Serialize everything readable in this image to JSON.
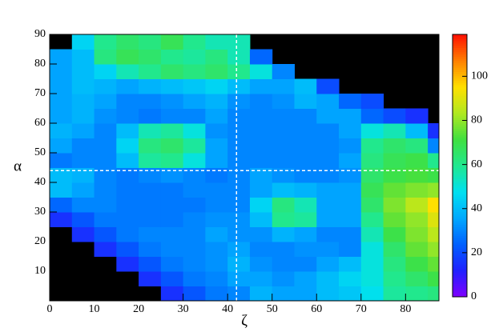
{
  "chart_data": {
    "type": "heatmap",
    "x_label": "ζ",
    "y_label": "α",
    "xlim": [
      0,
      87.5
    ],
    "ylim": [
      0,
      90
    ],
    "zlim": [
      0,
      119
    ],
    "xticks": [
      0,
      10,
      20,
      30,
      40,
      50,
      60,
      70,
      80
    ],
    "yticks": [
      10,
      20,
      30,
      40,
      50,
      60,
      70,
      80,
      90
    ],
    "zticks": [
      0,
      20,
      40,
      60,
      80,
      100
    ],
    "xbins": [
      0,
      5,
      10,
      15,
      20,
      25,
      30,
      35,
      40,
      45,
      50,
      55,
      60,
      65,
      70,
      75,
      80,
      85,
      90
    ],
    "ybins": [
      0,
      5,
      10,
      15,
      20,
      25,
      30,
      35,
      40,
      45,
      50,
      55,
      60,
      65,
      70,
      75,
      80,
      85,
      90
    ],
    "palette": [
      "#8000ff",
      "#2020ff",
      "#0060ff",
      "#00a8ff",
      "#00e0f0",
      "#20e890",
      "#40e040",
      "#b0e820",
      "#ffe000",
      "#ff8000",
      "#ff1000"
    ],
    "crosshair": {
      "x": 42,
      "y": 44,
      "color": "#ffffff"
    },
    "z": [
      [
        null,
        null,
        null,
        null,
        null,
        15,
        22,
        28,
        30,
        38,
        35,
        35,
        40,
        42,
        48,
        58,
        60,
        62
      ],
      [
        null,
        null,
        null,
        null,
        15,
        22,
        28,
        30,
        35,
        35,
        32,
        35,
        40,
        45,
        50,
        60,
        65,
        70
      ],
      [
        null,
        null,
        null,
        15,
        22,
        28,
        30,
        32,
        38,
        32,
        30,
        30,
        35,
        40,
        50,
        62,
        70,
        75
      ],
      [
        null,
        null,
        15,
        22,
        28,
        30,
        30,
        32,
        35,
        30,
        30,
        32,
        32,
        30,
        50,
        65,
        75,
        80
      ],
      [
        null,
        15,
        22,
        28,
        30,
        30,
        30,
        35,
        32,
        32,
        38,
        35,
        30,
        30,
        55,
        70,
        78,
        85
      ],
      [
        15,
        22,
        28,
        28,
        28,
        28,
        30,
        32,
        32,
        40,
        60,
        58,
        35,
        35,
        60,
        75,
        80,
        90
      ],
      [
        25,
        30,
        30,
        28,
        28,
        28,
        28,
        30,
        30,
        45,
        62,
        55,
        35,
        35,
        65,
        78,
        85,
        95
      ],
      [
        40,
        35,
        30,
        28,
        28,
        28,
        30,
        30,
        30,
        35,
        40,
        38,
        35,
        35,
        68,
        75,
        78,
        80
      ],
      [
        40,
        38,
        30,
        28,
        30,
        32,
        30,
        28,
        30,
        35,
        32,
        30,
        30,
        32,
        65,
        70,
        72,
        70
      ],
      [
        28,
        30,
        30,
        40,
        58,
        60,
        50,
        35,
        30,
        30,
        30,
        30,
        30,
        35,
        62,
        68,
        70,
        60
      ],
      [
        35,
        30,
        30,
        45,
        62,
        65,
        58,
        35,
        30,
        30,
        30,
        30,
        30,
        32,
        60,
        65,
        62,
        30
      ],
      [
        38,
        35,
        30,
        40,
        55,
        58,
        50,
        32,
        30,
        30,
        30,
        30,
        30,
        35,
        50,
        55,
        40,
        15
      ],
      [
        35,
        38,
        32,
        30,
        28,
        30,
        30,
        35,
        30,
        30,
        30,
        30,
        35,
        35,
        25,
        20,
        15,
        null
      ],
      [
        35,
        38,
        35,
        30,
        30,
        32,
        35,
        38,
        32,
        30,
        32,
        38,
        35,
        25,
        20,
        null,
        null,
        null
      ],
      [
        35,
        40,
        38,
        35,
        38,
        40,
        42,
        45,
        40,
        35,
        35,
        40,
        20,
        null,
        null,
        null,
        null,
        null
      ],
      [
        35,
        40,
        45,
        55,
        60,
        65,
        62,
        65,
        60,
        50,
        30,
        null,
        null,
        null,
        null,
        null,
        null,
        null
      ],
      [
        35,
        40,
        62,
        68,
        65,
        60,
        58,
        62,
        55,
        25,
        null,
        null,
        null,
        null,
        null,
        null,
        null,
        null
      ],
      [
        null,
        45,
        60,
        65,
        62,
        68,
        60,
        55,
        55,
        null,
        null,
        null,
        null,
        null,
        null,
        null,
        null,
        null
      ]
    ]
  }
}
